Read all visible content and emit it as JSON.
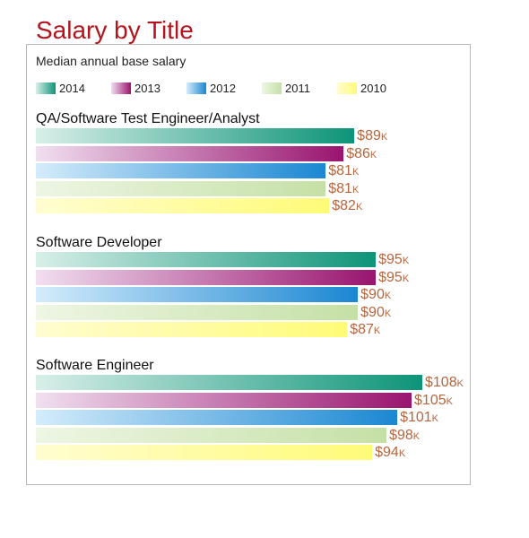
{
  "title": "Salary by Title",
  "subtitle": "Median annual base salary",
  "chart_data": {
    "type": "bar",
    "orientation": "horizontal",
    "title": "Salary by Title",
    "subtitle": "Median annual base salary",
    "unit_prefix": "$",
    "unit_suffix": "K",
    "xlim": [
      0,
      108
    ],
    "grid": false,
    "legend_placement": "top",
    "series": [
      {
        "name": "2014",
        "color_end": "#0d9478"
      },
      {
        "name": "2013",
        "color_end": "#99146f"
      },
      {
        "name": "2012",
        "color_end": "#1b87d2"
      },
      {
        "name": "2011",
        "color_end": "#c5e0a6"
      },
      {
        "name": "2010",
        "color_end": "#fffb77"
      }
    ],
    "groups": [
      {
        "label": "QA/Software Test Engineer/Analyst",
        "values": [
          89,
          86,
          81,
          81,
          82
        ]
      },
      {
        "label": "Software Developer",
        "values": [
          95,
          95,
          90,
          90,
          87
        ]
      },
      {
        "label": "Software Engineer",
        "values": [
          108,
          105,
          101,
          98,
          94
        ]
      }
    ]
  }
}
